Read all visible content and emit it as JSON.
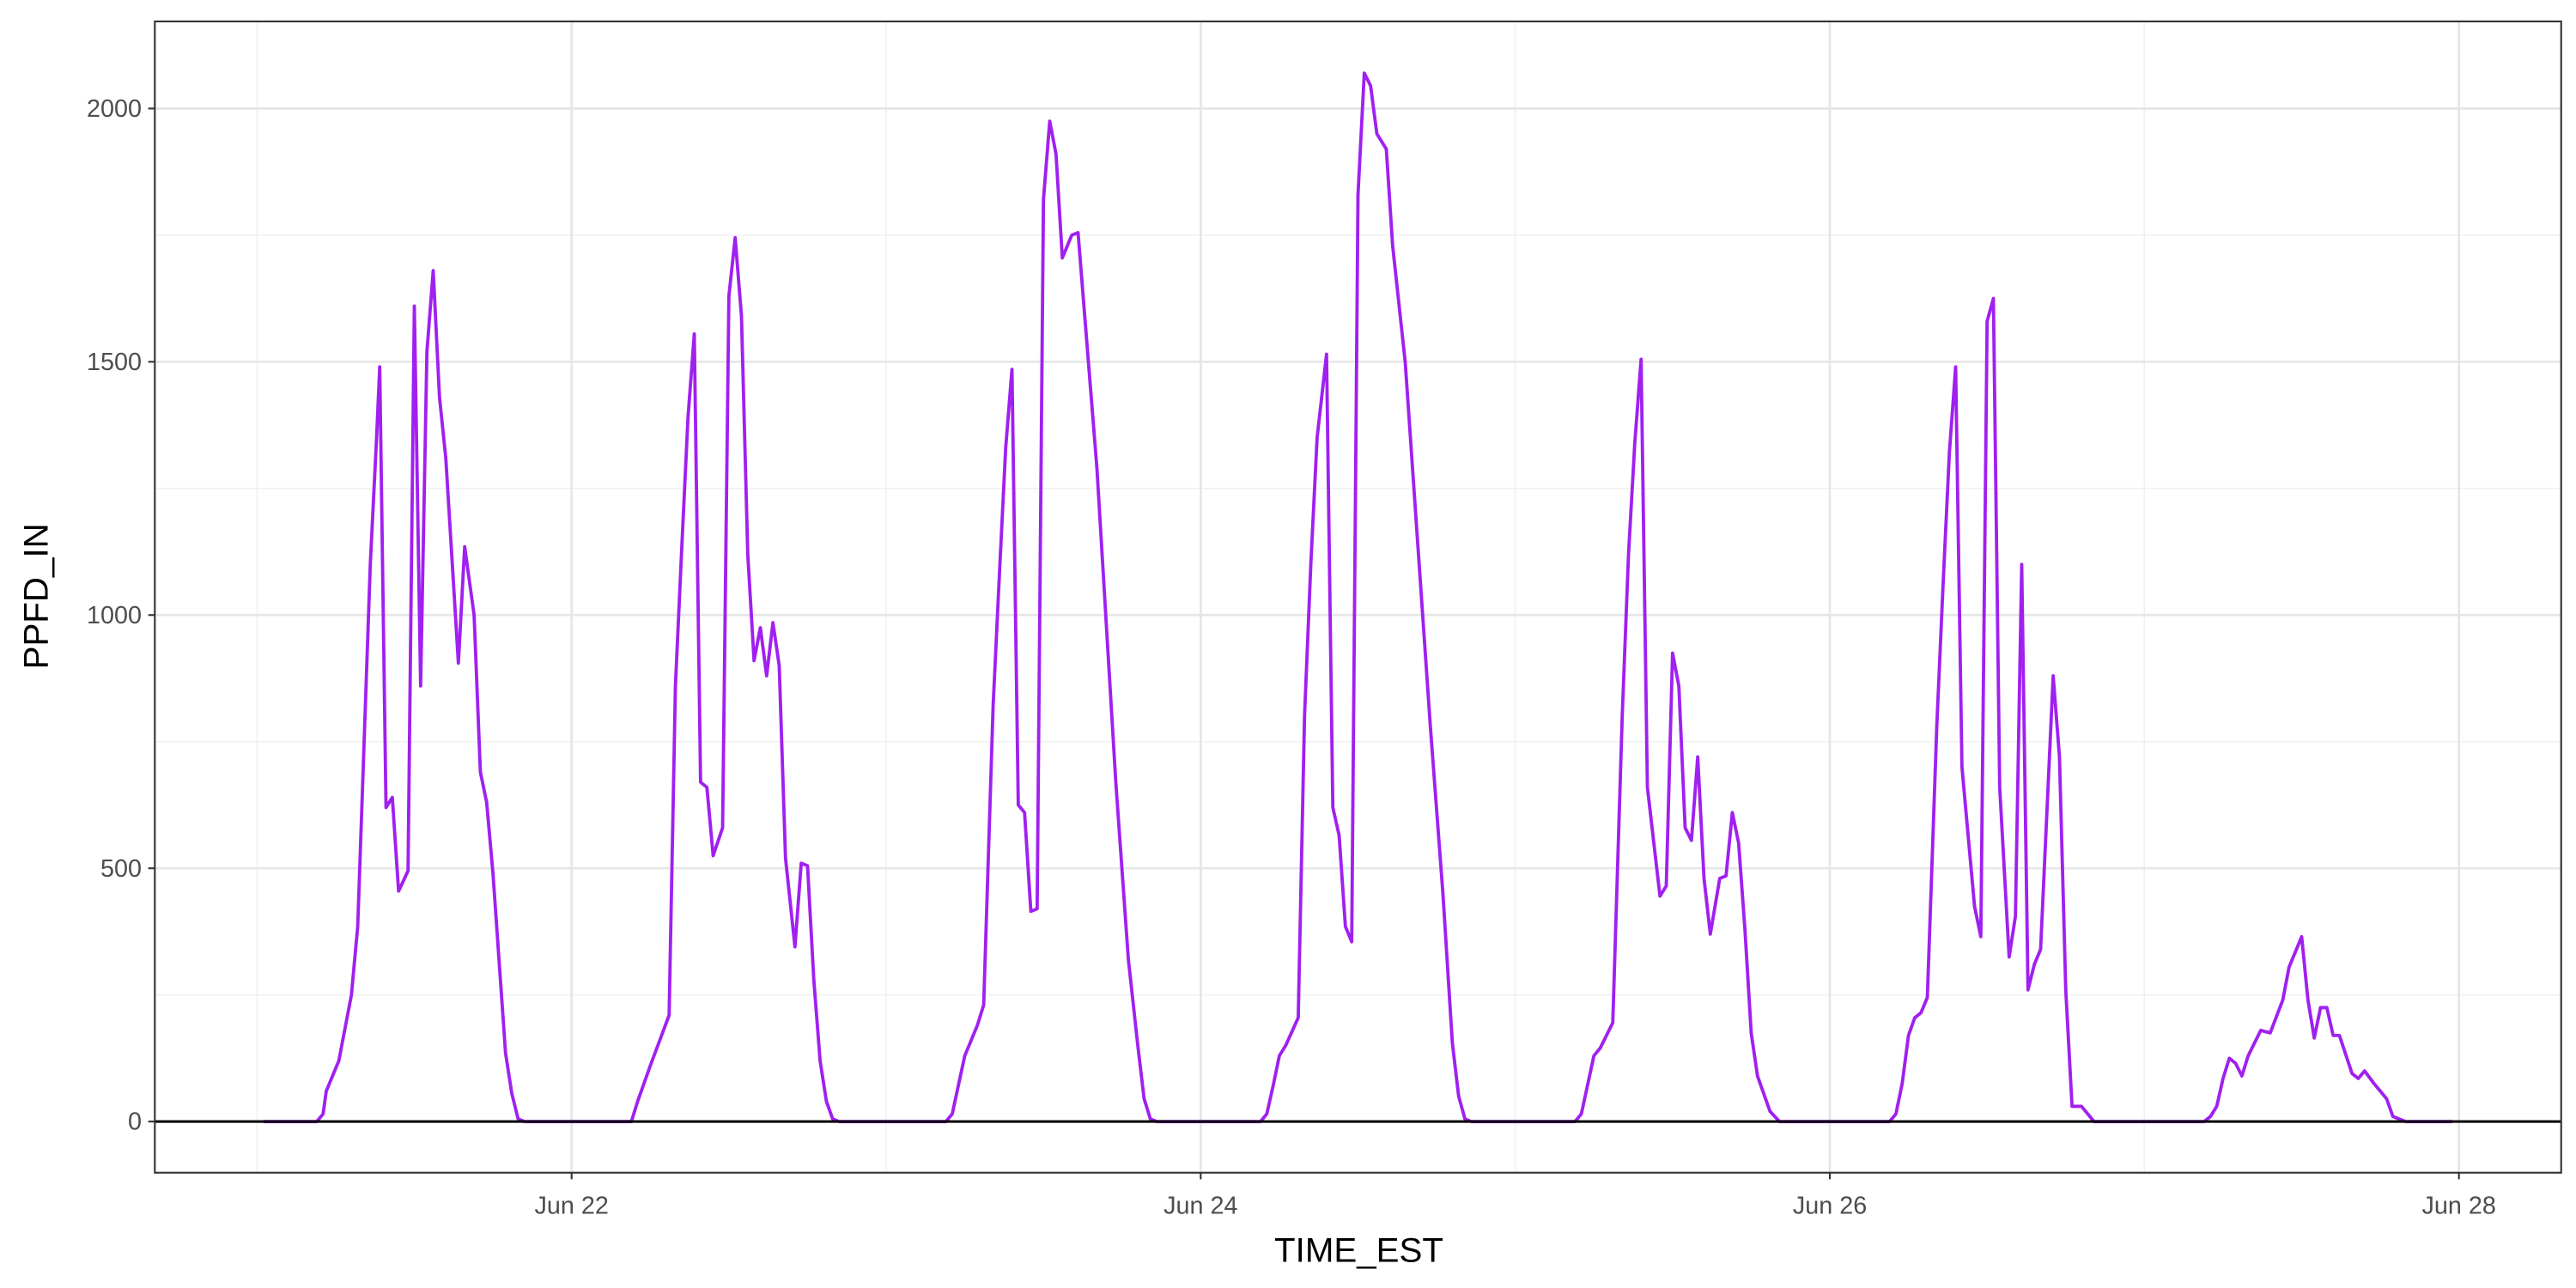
{
  "chart_data": {
    "type": "line",
    "x_label": "TIME_EST",
    "y_label": "PPFD_IN",
    "x": [
      21.02,
      21.19,
      21.21,
      21.22,
      21.26,
      21.3,
      21.32,
      21.36,
      21.38,
      21.39,
      21.41,
      21.43,
      21.45,
      21.48,
      21.5,
      21.52,
      21.54,
      21.56,
      21.58,
      21.6,
      21.64,
      21.66,
      21.69,
      21.71,
      21.73,
      21.75,
      21.79,
      21.81,
      21.83,
      21.85,
      22.19,
      22.21,
      22.25,
      22.31,
      22.33,
      22.35,
      22.37,
      22.39,
      22.41,
      22.43,
      22.45,
      22.48,
      22.5,
      22.52,
      22.54,
      22.56,
      22.58,
      22.6,
      22.62,
      22.64,
      22.66,
      22.68,
      22.71,
      22.73,
      22.75,
      22.77,
      22.79,
      22.81,
      22.83,
      22.85,
      23.19,
      23.21,
      23.25,
      23.29,
      23.31,
      23.34,
      23.36,
      23.38,
      23.4,
      23.42,
      23.44,
      23.46,
      23.48,
      23.5,
      23.52,
      23.54,
      23.56,
      23.59,
      23.61,
      23.67,
      23.73,
      23.77,
      23.8,
      23.82,
      23.84,
      23.86,
      24.19,
      24.21,
      24.23,
      24.25,
      24.27,
      24.31,
      24.33,
      24.35,
      24.37,
      24.4,
      24.42,
      24.44,
      24.46,
      24.48,
      24.5,
      24.52,
      24.54,
      24.56,
      24.59,
      24.61,
      24.65,
      24.73,
      24.77,
      24.8,
      24.82,
      24.84,
      24.86,
      25.19,
      25.21,
      25.25,
      25.27,
      25.31,
      25.34,
      25.36,
      25.38,
      25.4,
      25.42,
      25.46,
      25.48,
      25.5,
      25.52,
      25.54,
      25.56,
      25.58,
      25.6,
      25.62,
      25.65,
      25.67,
      25.69,
      25.71,
      25.73,
      25.75,
      25.77,
      25.79,
      25.81,
      25.84,
      26.19,
      26.21,
      26.23,
      26.25,
      26.27,
      26.29,
      26.31,
      26.34,
      26.36,
      26.38,
      26.4,
      26.42,
      26.46,
      26.48,
      26.5,
      26.52,
      26.54,
      26.57,
      26.59,
      26.61,
      26.63,
      26.65,
      26.67,
      26.71,
      26.73,
      26.75,
      26.77,
      26.8,
      26.84,
      27.19,
      27.21,
      27.23,
      27.25,
      27.27,
      27.29,
      27.31,
      27.33,
      27.37,
      27.4,
      27.44,
      27.46,
      27.5,
      27.52,
      27.54,
      27.56,
      27.58,
      27.6,
      27.62,
      27.66,
      27.68,
      27.7,
      27.73,
      27.77,
      27.79,
      27.81,
      27.83,
      27.98
    ],
    "series": [
      {
        "color": "#a020f0",
        "values": [
          0,
          0,
          15,
          60,
          120,
          250,
          385,
          1100,
          1350,
          1490,
          620,
          640,
          455,
          495,
          1610,
          860,
          1520,
          1680,
          1430,
          1310,
          905,
          1135,
          1000,
          690,
          630,
          490,
          135,
          55,
          5,
          0,
          0,
          40,
          110,
          210,
          860,
          1130,
          1390,
          1555,
          670,
          660,
          525,
          580,
          1630,
          1745,
          1590,
          1120,
          910,
          975,
          880,
          985,
          900,
          520,
          345,
          510,
          505,
          280,
          120,
          40,
          5,
          0,
          0,
          15,
          130,
          190,
          230,
          820,
          1080,
          1330,
          1485,
          625,
          610,
          415,
          420,
          1820,
          1975,
          1910,
          1705,
          1750,
          1755,
          1290,
          670,
          320,
          150,
          45,
          5,
          0,
          0,
          15,
          70,
          130,
          150,
          205,
          800,
          1100,
          1350,
          1515,
          620,
          565,
          385,
          355,
          1830,
          2070,
          2045,
          1950,
          1920,
          1730,
          1500,
          780,
          450,
          155,
          50,
          5,
          0,
          0,
          15,
          130,
          145,
          195,
          800,
          1120,
          1340,
          1505,
          660,
          445,
          465,
          925,
          860,
          580,
          555,
          720,
          480,
          370,
          480,
          485,
          610,
          550,
          380,
          175,
          90,
          55,
          20,
          0,
          0,
          15,
          75,
          170,
          205,
          215,
          245,
          780,
          1060,
          1320,
          1490,
          700,
          425,
          365,
          1580,
          1625,
          660,
          325,
          405,
          1100,
          260,
          310,
          340,
          880,
          720,
          260,
          30,
          30,
          0,
          0,
          10,
          30,
          85,
          125,
          115,
          90,
          130,
          180,
          175,
          240,
          305,
          365,
          240,
          165,
          225,
          225,
          170,
          170,
          95,
          85,
          100,
          75,
          45,
          10,
          5,
          0,
          0
        ]
      }
    ],
    "xlim": [
      20.675,
      28.325
    ],
    "ylim": [
      -101,
      2172
    ],
    "xticks": [
      {
        "value": 22,
        "label": "Jun 22"
      },
      {
        "value": 24,
        "label": "Jun 24"
      },
      {
        "value": 26,
        "label": "Jun 26"
      },
      {
        "value": 28,
        "label": "Jun 28"
      }
    ],
    "yticks": [
      0,
      500,
      1000,
      1500,
      2000
    ],
    "x_minor_ticks": [
      21,
      23,
      25,
      27
    ],
    "y_minor_ticks": [
      250,
      750,
      1250,
      1750
    ],
    "grid": true,
    "hline": 0
  }
}
